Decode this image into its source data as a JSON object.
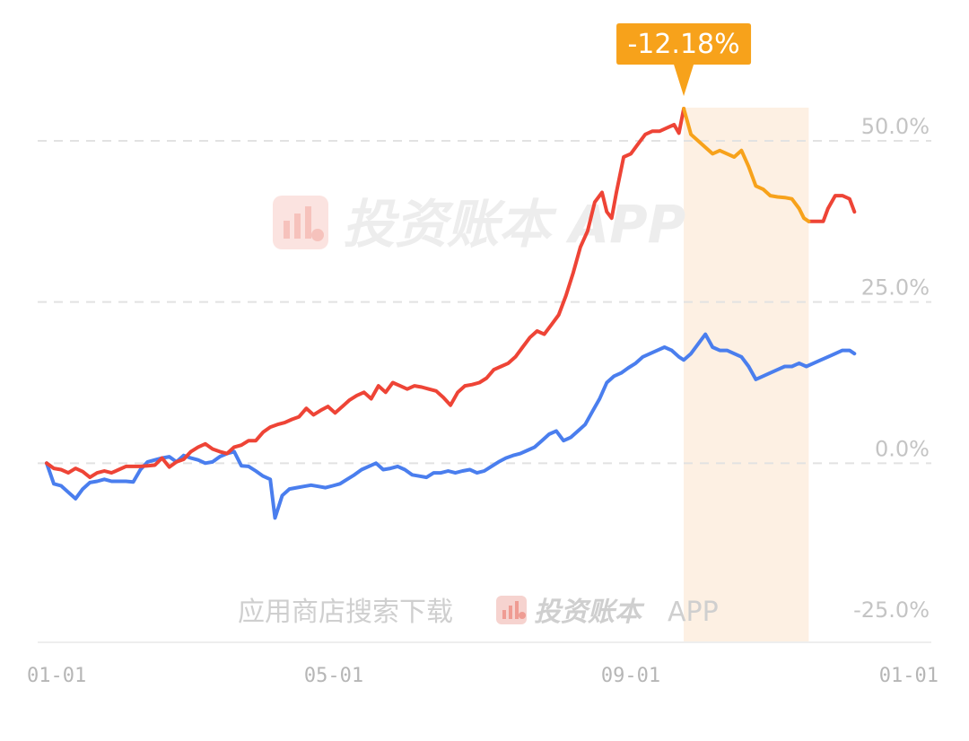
{
  "chart_data": {
    "type": "line",
    "x_ticks": [
      "01-01",
      "05-01",
      "09-01",
      "01-01"
    ],
    "y_ticks": [
      {
        "value": 50,
        "label": "50.0%"
      },
      {
        "value": 25,
        "label": "25.0%"
      },
      {
        "value": 0,
        "label": "0.0%"
      },
      {
        "value": -25,
        "label": "-25.0%"
      }
    ],
    "ylim": [
      -25,
      50
    ],
    "xlim": [
      0,
      365
    ],
    "drawdown": {
      "label": "-12.18%",
      "value": -12.18,
      "start_x": 265,
      "end_x": 317,
      "color": "#f7a21b",
      "band_color": "#fdf0e3"
    },
    "series": [
      {
        "color": "#ee4436",
        "values": [
          [
            0,
            0
          ],
          [
            3,
            -0.8
          ],
          [
            6,
            -1.0
          ],
          [
            9,
            -1.5
          ],
          [
            12,
            -0.8
          ],
          [
            15,
            -1.3
          ],
          [
            18,
            -2.2
          ],
          [
            21,
            -1.5
          ],
          [
            24,
            -1.2
          ],
          [
            27,
            -1.5
          ],
          [
            30,
            -1.0
          ],
          [
            33,
            -0.5
          ],
          [
            36,
            -0.5
          ],
          [
            39,
            -0.5
          ],
          [
            42,
            -0.4
          ],
          [
            45,
            -0.3
          ],
          [
            48,
            0.8
          ],
          [
            51,
            -0.6
          ],
          [
            54,
            0.2
          ],
          [
            57,
            0.6
          ],
          [
            60,
            1.8
          ],
          [
            63,
            2.5
          ],
          [
            66,
            3.0
          ],
          [
            69,
            2.2
          ],
          [
            72,
            1.8
          ],
          [
            75,
            1.5
          ],
          [
            78,
            2.5
          ],
          [
            81,
            2.8
          ],
          [
            84,
            3.5
          ],
          [
            87,
            3.5
          ],
          [
            90,
            4.8
          ],
          [
            93,
            5.6
          ],
          [
            96,
            6.0
          ],
          [
            99,
            6.3
          ],
          [
            102,
            6.8
          ],
          [
            105,
            7.2
          ],
          [
            108,
            8.5
          ],
          [
            111,
            7.5
          ],
          [
            114,
            8.2
          ],
          [
            117,
            8.8
          ],
          [
            120,
            7.8
          ],
          [
            123,
            8.8
          ],
          [
            126,
            9.8
          ],
          [
            129,
            10.5
          ],
          [
            132,
            11.0
          ],
          [
            135,
            10.0
          ],
          [
            138,
            12.0
          ],
          [
            141,
            11.0
          ],
          [
            144,
            12.5
          ],
          [
            147,
            12.0
          ],
          [
            150,
            11.5
          ],
          [
            153,
            12.0
          ],
          [
            156,
            11.8
          ],
          [
            159,
            11.5
          ],
          [
            162,
            11.2
          ],
          [
            165,
            10.2
          ],
          [
            168,
            9.0
          ],
          [
            171,
            11.0
          ],
          [
            174,
            12.0
          ],
          [
            177,
            12.2
          ],
          [
            180,
            12.5
          ],
          [
            183,
            13.2
          ],
          [
            186,
            14.5
          ],
          [
            189,
            15.0
          ],
          [
            192,
            15.5
          ],
          [
            195,
            16.5
          ],
          [
            198,
            18.0
          ],
          [
            201,
            19.5
          ],
          [
            204,
            20.5
          ],
          [
            207,
            20.0
          ],
          [
            210,
            21.5
          ],
          [
            213,
            23.0
          ],
          [
            216,
            26.0
          ],
          [
            219,
            29.5
          ],
          [
            222,
            33.5
          ],
          [
            225,
            36.0
          ],
          [
            228,
            40.5
          ],
          [
            231,
            42.0
          ],
          [
            233,
            39.0
          ],
          [
            235,
            38.0
          ],
          [
            237,
            42.0
          ],
          [
            240,
            47.5
          ],
          [
            243,
            48.0
          ],
          [
            246,
            49.5
          ],
          [
            249,
            51.0
          ],
          [
            252,
            51.5
          ],
          [
            255,
            51.5
          ],
          [
            258,
            52.0
          ],
          [
            261,
            52.5
          ],
          [
            263,
            51.2
          ],
          [
            265,
            55.0
          ],
          [
            268,
            51.0
          ],
          [
            271,
            50.0
          ],
          [
            274,
            49.0
          ],
          [
            277,
            48.0
          ],
          [
            280,
            48.5
          ],
          [
            283,
            48.0
          ],
          [
            286,
            47.5
          ],
          [
            289,
            48.5
          ],
          [
            292,
            46.0
          ],
          [
            295,
            43.0
          ],
          [
            298,
            42.5
          ],
          [
            301,
            41.5
          ],
          [
            304,
            41.3
          ],
          [
            307,
            41.2
          ],
          [
            310,
            41.0
          ],
          [
            313,
            39.5
          ],
          [
            315,
            38.0
          ],
          [
            317,
            37.5
          ],
          [
            320,
            37.5
          ],
          [
            323,
            37.5
          ],
          [
            325,
            39.5
          ],
          [
            328,
            41.5
          ],
          [
            331,
            41.5
          ],
          [
            334,
            41.0
          ],
          [
            336,
            39.0
          ]
        ]
      },
      {
        "color": "#4a7eee",
        "values": [
          [
            0,
            0
          ],
          [
            3,
            -3.2
          ],
          [
            6,
            -3.5
          ],
          [
            9,
            -4.5
          ],
          [
            12,
            -5.5
          ],
          [
            15,
            -4.0
          ],
          [
            18,
            -3.0
          ],
          [
            21,
            -2.8
          ],
          [
            24,
            -2.5
          ],
          [
            27,
            -2.8
          ],
          [
            30,
            -2.8
          ],
          [
            33,
            -2.8
          ],
          [
            36,
            -2.9
          ],
          [
            39,
            -1.0
          ],
          [
            42,
            0.2
          ],
          [
            45,
            0.5
          ],
          [
            48,
            0.8
          ],
          [
            51,
            1.0
          ],
          [
            54,
            0.2
          ],
          [
            57,
            1.2
          ],
          [
            60,
            0.8
          ],
          [
            63,
            0.5
          ],
          [
            66,
            0.0
          ],
          [
            69,
            0.2
          ],
          [
            72,
            1.0
          ],
          [
            75,
            1.5
          ],
          [
            78,
            1.8
          ],
          [
            81,
            -0.4
          ],
          [
            84,
            -0.5
          ],
          [
            87,
            -1.2
          ],
          [
            90,
            -2.0
          ],
          [
            93,
            -2.5
          ],
          [
            95,
            -8.5
          ],
          [
            98,
            -5.0
          ],
          [
            101,
            -4.0
          ],
          [
            104,
            -3.8
          ],
          [
            107,
            -3.6
          ],
          [
            110,
            -3.4
          ],
          [
            113,
            -3.6
          ],
          [
            116,
            -3.8
          ],
          [
            119,
            -3.5
          ],
          [
            122,
            -3.2
          ],
          [
            125,
            -2.5
          ],
          [
            128,
            -1.8
          ],
          [
            131,
            -1.0
          ],
          [
            134,
            -0.5
          ],
          [
            137,
            0.0
          ],
          [
            140,
            -1.0
          ],
          [
            143,
            -0.8
          ],
          [
            146,
            -0.5
          ],
          [
            149,
            -1.0
          ],
          [
            152,
            -1.8
          ],
          [
            155,
            -2.0
          ],
          [
            158,
            -2.2
          ],
          [
            161,
            -1.5
          ],
          [
            164,
            -1.5
          ],
          [
            167,
            -1.2
          ],
          [
            170,
            -1.5
          ],
          [
            173,
            -1.2
          ],
          [
            176,
            -1.0
          ],
          [
            179,
            -1.5
          ],
          [
            182,
            -1.2
          ],
          [
            185,
            -0.5
          ],
          [
            188,
            0.2
          ],
          [
            191,
            0.8
          ],
          [
            194,
            1.2
          ],
          [
            197,
            1.5
          ],
          [
            200,
            2.0
          ],
          [
            203,
            2.5
          ],
          [
            206,
            3.5
          ],
          [
            209,
            4.5
          ],
          [
            212,
            5.0
          ],
          [
            215,
            3.5
          ],
          [
            218,
            4.0
          ],
          [
            221,
            5.0
          ],
          [
            224,
            6.0
          ],
          [
            227,
            8.0
          ],
          [
            230,
            10.0
          ],
          [
            233,
            12.5
          ],
          [
            236,
            13.5
          ],
          [
            239,
            14.0
          ],
          [
            242,
            14.8
          ],
          [
            245,
            15.5
          ],
          [
            248,
            16.5
          ],
          [
            251,
            17.0
          ],
          [
            254,
            17.5
          ],
          [
            257,
            18.0
          ],
          [
            260,
            17.5
          ],
          [
            263,
            16.5
          ],
          [
            265,
            16.0
          ],
          [
            268,
            17.0
          ],
          [
            271,
            18.5
          ],
          [
            274,
            20.0
          ],
          [
            277,
            18.0
          ],
          [
            280,
            17.5
          ],
          [
            283,
            17.5
          ],
          [
            286,
            17.0
          ],
          [
            289,
            16.5
          ],
          [
            292,
            15.0
          ],
          [
            295,
            13.0
          ],
          [
            298,
            13.5
          ],
          [
            301,
            14.0
          ],
          [
            304,
            14.5
          ],
          [
            307,
            15.0
          ],
          [
            310,
            15.0
          ],
          [
            313,
            15.5
          ],
          [
            316,
            15.0
          ],
          [
            319,
            15.5
          ],
          [
            322,
            16.0
          ],
          [
            325,
            16.5
          ],
          [
            328,
            17.0
          ],
          [
            331,
            17.5
          ],
          [
            334,
            17.5
          ],
          [
            336,
            17.0
          ]
        ]
      }
    ]
  },
  "watermark": {
    "brand": "投资账本 APP",
    "footer_text": "应用商店搜索下载",
    "footer_brand": "投资账本",
    "footer_suffix": "APP"
  }
}
